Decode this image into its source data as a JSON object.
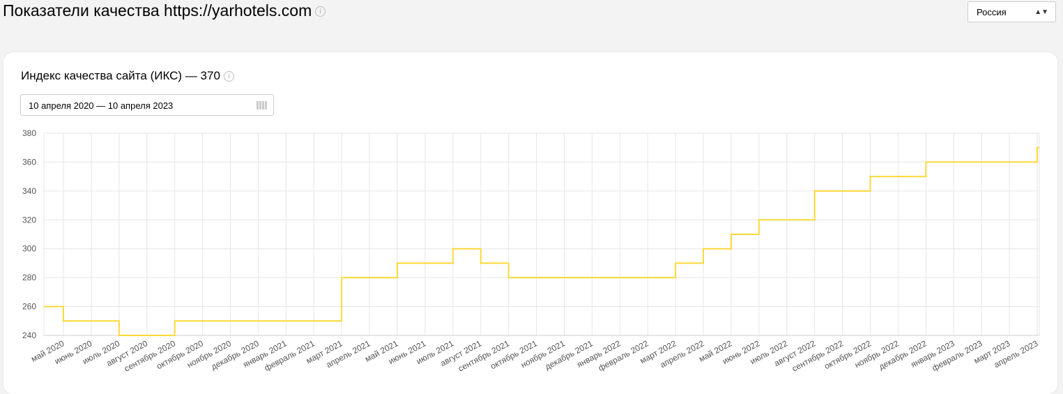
{
  "header": {
    "title": "Показатели качества https://yarhotels.com",
    "region": "Россия"
  },
  "card": {
    "title": "Индекс качества сайта (ИКС) — 370",
    "date_range": "10 апреля 2020 — 10 апреля 2023"
  },
  "chart_data": {
    "type": "line",
    "step": true,
    "color": "#fcd838",
    "grid": true,
    "categories": [
      null,
      "май 2020",
      "июнь 2020",
      "июль 2020",
      "август 2020",
      "сентябрь 2020",
      "октябрь 2020",
      "ноябрь 2020",
      "декабрь 2020",
      "январь 2021",
      "февраль 2021",
      "март 2021",
      "апрель 2021",
      "май 2021",
      "июнь 2021",
      "июль 2021",
      "август 2021",
      "сентябрь 2021",
      "октябрь 2021",
      "ноябрь 2021",
      "декабрь 2021",
      "январь 2022",
      "февраль 2022",
      "март 2022",
      "апрель 2022",
      "май 2022",
      "июнь 2022",
      "июль 2022",
      "август 2022",
      "сентябрь 2022",
      "октябрь 2022",
      "ноябрь 2022",
      "декабрь 2022",
      "январь 2023",
      "февраль 2023",
      "март 2023",
      "апрель 2023"
    ],
    "values": [
      260,
      250,
      250,
      240,
      240,
      250,
      250,
      250,
      250,
      250,
      250,
      280,
      280,
      290,
      290,
      300,
      290,
      280,
      280,
      280,
      280,
      280,
      280,
      290,
      300,
      310,
      320,
      320,
      340,
      340,
      350,
      350,
      360,
      360,
      360,
      360,
      370
    ],
    "ylim": [
      240,
      380
    ],
    "yticks": [
      240,
      260,
      280,
      300,
      320,
      340,
      360,
      380
    ]
  }
}
